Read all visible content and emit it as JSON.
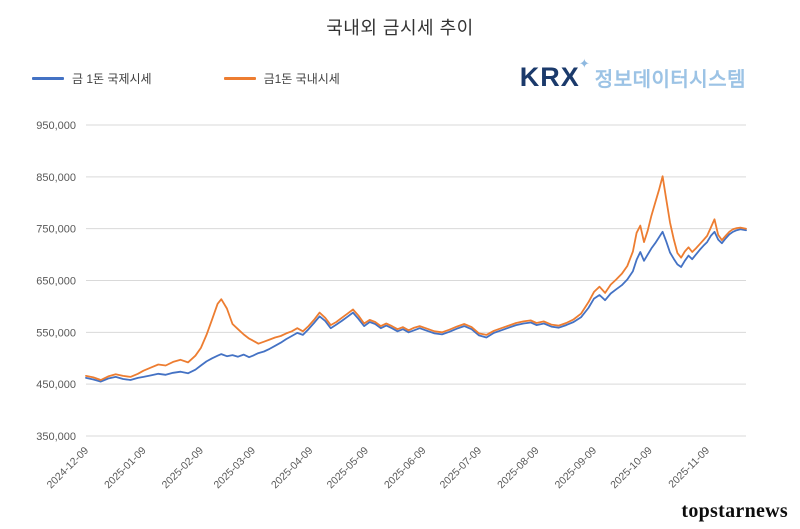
{
  "page": {
    "title": "국내외 금시세 추이",
    "watermark": "topstarnews",
    "logo": {
      "krx": "KRX",
      "sparkle": "✦",
      "subtitle": "정보데이터시스템"
    }
  },
  "chart_data": {
    "type": "line",
    "title": "국내외 금시세 추이",
    "x_unit": "days since 2024-12-09",
    "grid": "horizontal",
    "legend_position": "top-left",
    "ylim": [
      350000,
      950000
    ],
    "yticks": [
      {
        "value": 350000,
        "label": "350,000"
      },
      {
        "value": 450000,
        "label": "450,000"
      },
      {
        "value": 550000,
        "label": "550,000"
      },
      {
        "value": 650000,
        "label": "650,000"
      },
      {
        "value": 750000,
        "label": "750,000"
      },
      {
        "value": 850000,
        "label": "850,000"
      },
      {
        "value": 950000,
        "label": "950,000"
      }
    ],
    "xticks": [
      {
        "x": 0,
        "label": "2024-12-09"
      },
      {
        "x": 31,
        "label": "2025-01-09"
      },
      {
        "x": 62,
        "label": "2025-02-09"
      },
      {
        "x": 90,
        "label": "2025-03-09"
      },
      {
        "x": 121,
        "label": "2025-04-09"
      },
      {
        "x": 151,
        "label": "2025-05-09"
      },
      {
        "x": 182,
        "label": "2025-06-09"
      },
      {
        "x": 212,
        "label": "2025-07-09"
      },
      {
        "x": 243,
        "label": "2025-08-09"
      },
      {
        "x": 274,
        "label": "2025-09-09"
      },
      {
        "x": 304,
        "label": "2025-10-09"
      },
      {
        "x": 335,
        "label": "2025-11-09"
      }
    ],
    "x": [
      0,
      4,
      8,
      12,
      16,
      20,
      24,
      28,
      31,
      35,
      39,
      43,
      47,
      51,
      55,
      59,
      62,
      65,
      68,
      71,
      73,
      76,
      79,
      82,
      85,
      88,
      90,
      93,
      96,
      99,
      102,
      105,
      108,
      111,
      114,
      117,
      120,
      123,
      126,
      129,
      132,
      135,
      138,
      141,
      144,
      147,
      150,
      153,
      156,
      159,
      162,
      165,
      168,
      171,
      174,
      177,
      180,
      184,
      188,
      192,
      196,
      200,
      204,
      208,
      212,
      216,
      220,
      224,
      228,
      232,
      236,
      240,
      243,
      247,
      251,
      255,
      259,
      263,
      267,
      271,
      274,
      277,
      280,
      283,
      286,
      289,
      292,
      295,
      297,
      299,
      301,
      303,
      305,
      307,
      309,
      311,
      313,
      315,
      317,
      319,
      321,
      323,
      325,
      327,
      329,
      331,
      333,
      335,
      337,
      339,
      341,
      343,
      345,
      347,
      349,
      351,
      353,
      356
    ],
    "series": [
      {
        "name": "금 1돈 국제시세",
        "color": "#4472C4",
        "values": [
          462000,
          459000,
          455000,
          461000,
          464000,
          460000,
          458000,
          462000,
          464000,
          467000,
          470000,
          468000,
          472000,
          474000,
          471000,
          478000,
          486000,
          494000,
          500000,
          505000,
          508000,
          504000,
          506000,
          503000,
          507000,
          502000,
          505000,
          510000,
          513000,
          518000,
          524000,
          530000,
          537000,
          543000,
          549000,
          545000,
          556000,
          568000,
          581000,
          572000,
          558000,
          565000,
          572000,
          580000,
          588000,
          576000,
          562000,
          570000,
          566000,
          558000,
          563000,
          558000,
          552000,
          556000,
          550000,
          554000,
          558000,
          553000,
          548000,
          546000,
          551000,
          557000,
          562000,
          556000,
          544000,
          540000,
          549000,
          554000,
          559000,
          564000,
          567000,
          569000,
          564000,
          567000,
          561000,
          559000,
          564000,
          570000,
          579000,
          597000,
          615000,
          622000,
          612000,
          625000,
          633000,
          641000,
          652000,
          668000,
          690000,
          705000,
          688000,
          700000,
          712000,
          722000,
          733000,
          744000,
          725000,
          704000,
          692000,
          681000,
          676000,
          688000,
          698000,
          691000,
          700000,
          709000,
          717000,
          724000,
          736000,
          744000,
          729000,
          722000,
          731000,
          739000,
          744000,
          747000,
          749000,
          747000
        ]
      },
      {
        "name": "금1돈 국내시세",
        "color": "#ED7D31",
        "values": [
          466000,
          463000,
          458000,
          465000,
          469000,
          466000,
          464000,
          470000,
          476000,
          482000,
          488000,
          486000,
          493000,
          497000,
          492000,
          505000,
          520000,
          545000,
          575000,
          605000,
          614000,
          596000,
          566000,
          556000,
          546000,
          538000,
          534000,
          528000,
          532000,
          536000,
          540000,
          543000,
          548000,
          552000,
          558000,
          552000,
          562000,
          574000,
          588000,
          578000,
          564000,
          570000,
          578000,
          586000,
          594000,
          582000,
          567000,
          574000,
          570000,
          562000,
          567000,
          562000,
          556000,
          560000,
          554000,
          559000,
          562000,
          557000,
          552000,
          550000,
          555000,
          561000,
          566000,
          560000,
          548000,
          545000,
          553000,
          558000,
          563000,
          568000,
          571000,
          573000,
          568000,
          571000,
          565000,
          563000,
          568000,
          575000,
          586000,
          608000,
          628000,
          638000,
          626000,
          642000,
          652000,
          663000,
          678000,
          706000,
          742000,
          756000,
          724000,
          746000,
          775000,
          800000,
          824000,
          851000,
          806000,
          762000,
          730000,
          703000,
          694000,
          706000,
          714000,
          705000,
          712000,
          720000,
          728000,
          736000,
          752000,
          768000,
          738000,
          728000,
          736000,
          744000,
          749000,
          751000,
          752000,
          750000
        ]
      }
    ]
  }
}
